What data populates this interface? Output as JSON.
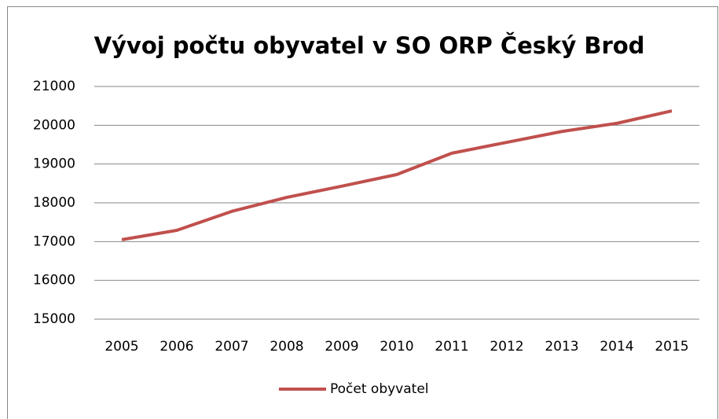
{
  "chart_data": {
    "type": "line",
    "title": "Vývoj počtu  obyvatel v SO ORP  Český Brod",
    "categories": [
      "2005",
      "2006",
      "2007",
      "2008",
      "2009",
      "2010",
      "2011",
      "2012",
      "2013",
      "2014",
      "2015"
    ],
    "series": [
      {
        "name": "Počet obyvatel",
        "color": "#c0504d",
        "values": [
          17050,
          17290,
          17780,
          18140,
          18430,
          18730,
          19280,
          19560,
          19840,
          20050,
          20370
        ]
      }
    ],
    "ylim": [
      15000,
      21000
    ],
    "yticks": [
      15000,
      16000,
      17000,
      18000,
      19000,
      20000,
      21000
    ],
    "grid": true,
    "legend": "bottom"
  }
}
